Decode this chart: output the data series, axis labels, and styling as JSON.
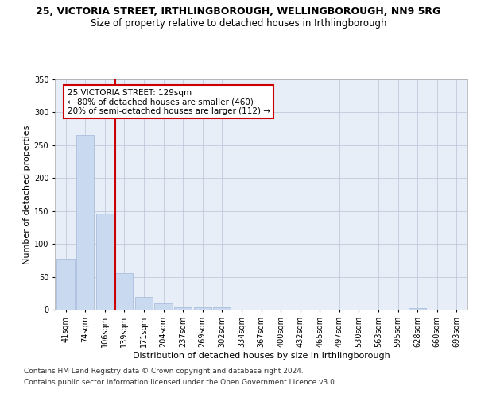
{
  "title1": "25, VICTORIA STREET, IRTHLINGBOROUGH, WELLINGBOROUGH, NN9 5RG",
  "title2": "Size of property relative to detached houses in Irthlingborough",
  "xlabel": "Distribution of detached houses by size in Irthlingborough",
  "ylabel": "Number of detached properties",
  "categories": [
    "41sqm",
    "74sqm",
    "106sqm",
    "139sqm",
    "171sqm",
    "204sqm",
    "237sqm",
    "269sqm",
    "302sqm",
    "334sqm",
    "367sqm",
    "400sqm",
    "432sqm",
    "465sqm",
    "497sqm",
    "530sqm",
    "563sqm",
    "595sqm",
    "628sqm",
    "660sqm",
    "693sqm"
  ],
  "values": [
    77,
    265,
    146,
    56,
    19,
    10,
    4,
    4,
    4,
    0,
    0,
    0,
    0,
    0,
    0,
    0,
    0,
    0,
    3,
    0,
    0
  ],
  "bar_color": "#c9d9f0",
  "bar_edge_color": "#a0b8d8",
  "vline_color": "#cc0000",
  "annotation_text": "25 VICTORIA STREET: 129sqm\n← 80% of detached houses are smaller (460)\n20% of semi-detached houses are larger (112) →",
  "annotation_box_color": "#ffffff",
  "annotation_box_edge": "#cc0000",
  "ylim": [
    0,
    350
  ],
  "yticks": [
    0,
    50,
    100,
    150,
    200,
    250,
    300,
    350
  ],
  "footer1": "Contains HM Land Registry data © Crown copyright and database right 2024.",
  "footer2": "Contains public sector information licensed under the Open Government Licence v3.0.",
  "plot_bg_color": "#e8eef8",
  "title1_fontsize": 9,
  "title2_fontsize": 8.5,
  "axis_label_fontsize": 8,
  "tick_fontsize": 7,
  "annotation_fontsize": 7.5,
  "footer_fontsize": 6.5
}
